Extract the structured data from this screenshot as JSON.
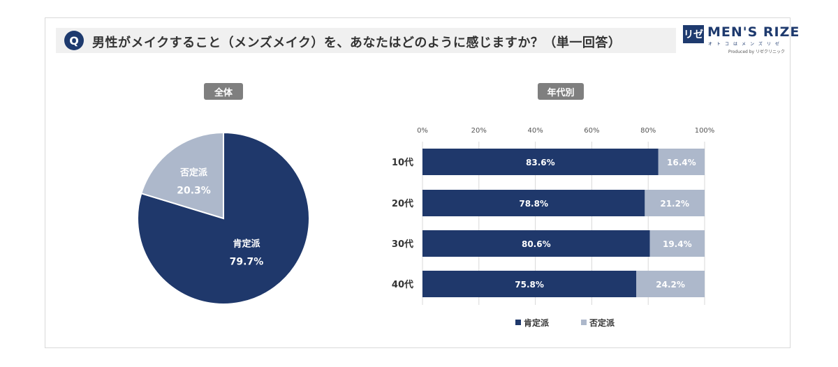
{
  "question": {
    "badge": "Q",
    "text": "男性がメイクすること（メンズメイク）を、あなたはどのように感じますか？（単一回答）"
  },
  "brand": {
    "mark": "リゼ",
    "name": "MEN'S RIZE",
    "tagline": "オトコはメンズリゼ",
    "produced_by": "Produced by リゼクリニック"
  },
  "colors": {
    "positive": "#1f386b",
    "negative": "#adb8cb",
    "pill": "#7f7f7f"
  },
  "chart_data": [
    {
      "type": "pie",
      "title": "全体",
      "labels": [
        "肯定派",
        "否定派"
      ],
      "values": [
        79.7,
        20.3
      ],
      "value_labels": [
        "79.7%",
        "20.3%"
      ]
    },
    {
      "type": "bar",
      "orientation": "horizontal",
      "stacked": true,
      "title": "年代別",
      "categories": [
        "10代",
        "20代",
        "30代",
        "40代"
      ],
      "series": [
        {
          "name": "肯定派",
          "values": [
            83.6,
            78.8,
            80.6,
            75.8
          ],
          "labels": [
            "83.6%",
            "78.8%",
            "80.6%",
            "75.8%"
          ]
        },
        {
          "name": "否定派",
          "values": [
            16.4,
            21.2,
            19.4,
            24.2
          ],
          "labels": [
            "16.4%",
            "21.2%",
            "19.4%",
            "24.2%"
          ]
        }
      ],
      "x_ticks": [
        "0%",
        "20%",
        "40%",
        "60%",
        "80%",
        "100%"
      ],
      "xlim": [
        0,
        100
      ],
      "grid": true,
      "legend": "bottom"
    }
  ]
}
